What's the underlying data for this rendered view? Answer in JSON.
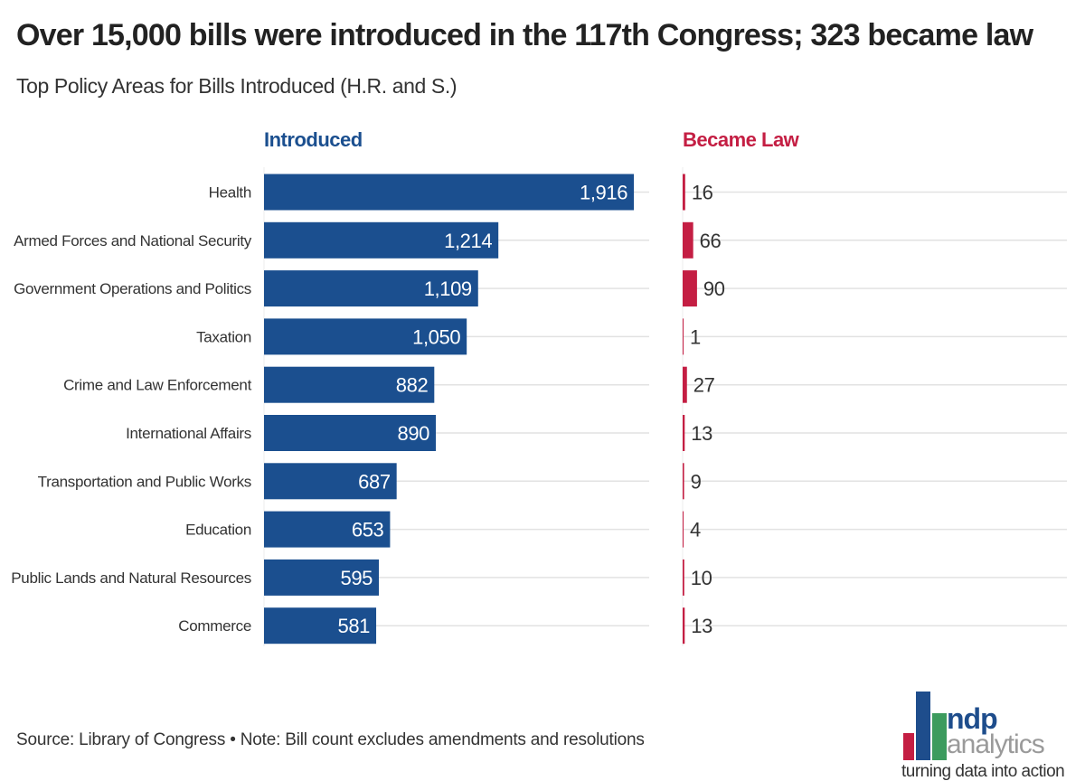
{
  "title": "Over 15,000 bills were introduced in the 117th Congress; 323 became law",
  "subtitle": "Top Policy Areas for Bills Introduced (H.R. and S.)",
  "source_note": "Source: Library of Congress • Note: Bill count excludes amendments and resolutions",
  "logo": {
    "name_top": "ndp",
    "name_bottom": "analytics",
    "tagline": "turning data into action"
  },
  "colors": {
    "introduced": "#1b4f8f",
    "became_law": "#c41e43",
    "grid": "#e2e2e2",
    "axis_text": "#333333"
  },
  "chart_data": {
    "type": "bar",
    "orientation": "horizontal",
    "categories": [
      "Health",
      "Armed Forces and National Security",
      "Government Operations and Politics",
      "Taxation",
      "Crime and Law Enforcement",
      "International Affairs",
      "Transportation and Public Works",
      "Education",
      "Public Lands and Natural Resources",
      "Commerce"
    ],
    "series": [
      {
        "name": "Introduced",
        "values": [
          1916,
          1214,
          1109,
          1050,
          882,
          890,
          687,
          653,
          595,
          581
        ],
        "labels": [
          "1,916",
          "1,214",
          "1,109",
          "1,050",
          "882",
          "890",
          "687",
          "653",
          "595",
          "581"
        ],
        "xlim": [
          0,
          2000
        ]
      },
      {
        "name": "Became Law",
        "values": [
          16,
          66,
          90,
          1,
          27,
          13,
          9,
          4,
          10,
          13
        ],
        "labels": [
          "16",
          "66",
          "90",
          "1",
          "27",
          "13",
          "9",
          "4",
          "10",
          "13"
        ],
        "xlim": [
          0,
          100
        ]
      }
    ]
  }
}
